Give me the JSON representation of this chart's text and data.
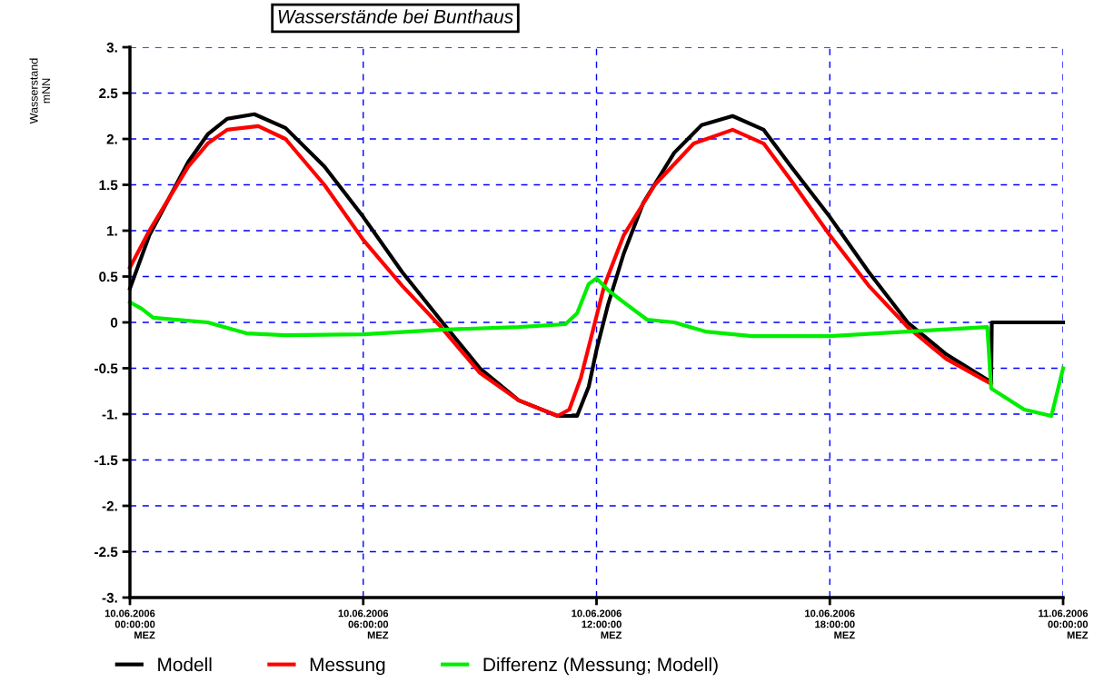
{
  "chart_data": {
    "type": "line",
    "title": "Wasserstände bei Bunthaus",
    "ylabel": "Wasserstand\nmNN",
    "xlim": [
      "2006-06-10T00:00",
      "2006-06-11T00:00"
    ],
    "ylim": [
      -3,
      3
    ],
    "xticks": [
      {
        "value": "2006-06-10T00:00",
        "label": "10.06.2006\n00:00:00\nMEZ"
      },
      {
        "value": "2006-06-10T06:00",
        "label": "10.06.2006\n06:00:00\nMEZ"
      },
      {
        "value": "2006-06-10T12:00",
        "label": "10.06.2006\n12:00:00\nMEZ"
      },
      {
        "value": "2006-06-10T18:00",
        "label": "10.06.2006\n18:00:00\nMEZ"
      },
      {
        "value": "2006-06-11T00:00",
        "label": "11.06.2006\n00:00:00\nMEZ"
      }
    ],
    "yticks": [
      {
        "value": 3,
        "label": "3."
      },
      2.5,
      {
        "value": 2,
        "label": "2."
      },
      1.5,
      {
        "value": 1,
        "label": "1."
      },
      0.5,
      0,
      -0.5,
      {
        "value": -1,
        "label": "-1."
      },
      -1.5,
      {
        "value": -2,
        "label": "-2."
      },
      -2.5,
      {
        "value": -3,
        "label": "-3."
      }
    ],
    "grid": true,
    "legend": "bottom",
    "line_style": "solid",
    "marker": "none",
    "series": [
      {
        "name": "Modell",
        "color": "#000000",
        "x": [
          "2006-06-10T00:00",
          "2006-06-10T00:30",
          "2006-06-10T01:00",
          "2006-06-10T01:30",
          "2006-06-10T02:00",
          "2006-06-10T02:30",
          "2006-06-10T03:12",
          "2006-06-10T04:00",
          "2006-06-10T05:00",
          "2006-06-10T06:00",
          "2006-06-10T07:00",
          "2006-06-10T08:00",
          "2006-06-10T09:00",
          "2006-06-10T10:00",
          "2006-06-10T11:00",
          "2006-06-10T11:30",
          "2006-06-10T11:48",
          "2006-06-10T12:00",
          "2006-06-10T12:18",
          "2006-06-10T12:42",
          "2006-06-10T13:12",
          "2006-06-10T14:00",
          "2006-06-10T14:42",
          "2006-06-10T15:30",
          "2006-06-10T16:18",
          "2006-06-10T17:00",
          "2006-06-10T18:00",
          "2006-06-10T19:00",
          "2006-06-10T20:00",
          "2006-06-10T21:00",
          "2006-06-10T22:09",
          "2006-06-10T22:10",
          "2006-06-11T00:00"
        ],
        "values": [
          0.37,
          0.95,
          1.35,
          1.75,
          2.05,
          2.22,
          2.27,
          2.12,
          1.7,
          1.15,
          0.55,
          0.02,
          -0.5,
          -0.85,
          -1.02,
          -1.02,
          -0.7,
          -0.3,
          0.2,
          0.75,
          1.3,
          1.85,
          2.15,
          2.25,
          2.1,
          1.7,
          1.15,
          0.55,
          0.0,
          -0.35,
          -0.65,
          0,
          0
        ]
      },
      {
        "name": "Messung",
        "color": "#ff0000",
        "x": [
          "2006-06-10T00:00",
          "2006-06-10T00:30",
          "2006-06-10T01:00",
          "2006-06-10T01:30",
          "2006-06-10T02:00",
          "2006-06-10T02:30",
          "2006-06-10T03:18",
          "2006-06-10T04:00",
          "2006-06-10T05:00",
          "2006-06-10T06:00",
          "2006-06-10T07:00",
          "2006-06-10T08:00",
          "2006-06-10T09:00",
          "2006-06-10T10:00",
          "2006-06-10T11:00",
          "2006-06-10T11:18",
          "2006-06-10T11:36",
          "2006-06-10T11:54",
          "2006-06-10T12:12",
          "2006-06-10T12:42",
          "2006-06-10T13:30",
          "2006-06-10T14:30",
          "2006-06-10T15:30",
          "2006-06-10T16:18",
          "2006-06-10T17:00",
          "2006-06-10T18:00",
          "2006-06-10T19:00",
          "2006-06-10T20:00",
          "2006-06-10T21:00",
          "2006-06-10T22:09"
        ],
        "values": [
          0.6,
          1.0,
          1.35,
          1.7,
          1.95,
          2.1,
          2.14,
          2.0,
          1.5,
          0.9,
          0.4,
          -0.05,
          -0.55,
          -0.85,
          -1.02,
          -0.95,
          -0.6,
          -0.1,
          0.4,
          0.95,
          1.5,
          1.95,
          2.1,
          1.95,
          1.55,
          0.95,
          0.4,
          -0.05,
          -0.4,
          -0.67
        ]
      },
      {
        "name": "Differenz (Messung; Modell)",
        "color": "#00ee00",
        "x": [
          "2006-06-10T00:00",
          "2006-06-10T00:18",
          "2006-06-10T00:36",
          "2006-06-10T02:00",
          "2006-06-10T03:00",
          "2006-06-10T04:00",
          "2006-06-10T06:00",
          "2006-06-10T08:00",
          "2006-06-10T10:00",
          "2006-06-10T11:12",
          "2006-06-10T11:30",
          "2006-06-10T11:48",
          "2006-06-10T12:00",
          "2006-06-10T12:18",
          "2006-06-10T12:42",
          "2006-06-10T13:18",
          "2006-06-10T14:00",
          "2006-06-10T14:48",
          "2006-06-10T16:00",
          "2006-06-10T18:00",
          "2006-06-10T20:00",
          "2006-06-10T22:03",
          "2006-06-10T22:09",
          "2006-06-10T23:00",
          "2006-06-10T23:42",
          "2006-06-11T00:00"
        ],
        "values": [
          0.22,
          0.15,
          0.05,
          0.0,
          -0.12,
          -0.14,
          -0.13,
          -0.08,
          -0.05,
          -0.02,
          0.1,
          0.42,
          0.48,
          0.35,
          0.22,
          0.03,
          0.0,
          -0.1,
          -0.15,
          -0.15,
          -0.1,
          -0.05,
          -0.72,
          -0.95,
          -1.02,
          -0.5
        ]
      }
    ]
  }
}
